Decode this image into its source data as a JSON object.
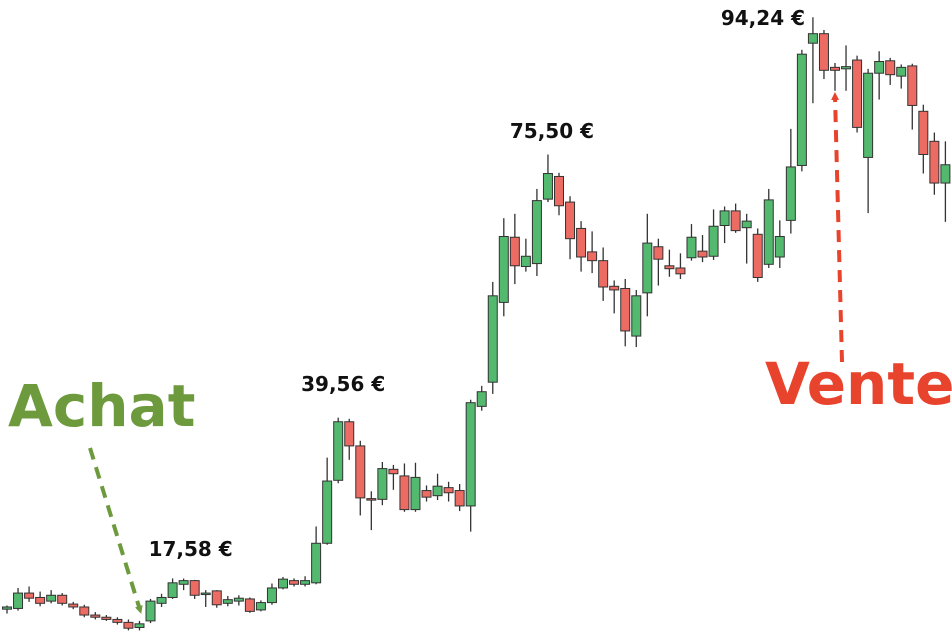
{
  "chart_data": {
    "type": "candlestick",
    "up_color": "#52b96e",
    "down_color": "#ec6b63",
    "ylim": [
      9.6,
      96.6
    ],
    "open": [
      13.4,
      13.5,
      15.6,
      15.0,
      14.5,
      15.3,
      14.1,
      13.7,
      12.6,
      12.3,
      12.0,
      11.6,
      10.9,
      11.8,
      14.2,
      15.0,
      16.8,
      17.3,
      15.4,
      15.9,
      14.2,
      14.5,
      14.8,
      13.3,
      14.3,
      16.3,
      17.3,
      16.8,
      17.0,
      22.4,
      31.0,
      39.0,
      35.7,
      28.5,
      28.4,
      32.5,
      31.6,
      27.0,
      29.6,
      28.9,
      30.0,
      29.6,
      27.5,
      41.1,
      44.4,
      55.3,
      64.2,
      60.2,
      60.6,
      69.4,
      72.5,
      69.0,
      65.4,
      62.2,
      61.0,
      57.5,
      57.2,
      50.7,
      56.6,
      62.9,
      60.3,
      60.0,
      61.4,
      62.3,
      61.6,
      65.8,
      67.8,
      65.5,
      64.6,
      60.5,
      61.5,
      66.5,
      74.0,
      90.7,
      92.0,
      87.4,
      87.2,
      88.4,
      75.1,
      86.6,
      88.3,
      86.2,
      87.6,
      81.4,
      77.3,
      71.6
    ],
    "high": [
      13.9,
      16.3,
      16.5,
      15.8,
      16.0,
      15.6,
      14.4,
      14.0,
      13.0,
      12.6,
      12.3,
      12.0,
      11.8,
      14.8,
      15.5,
      17.6,
      17.58,
      17.4,
      16.0,
      16.0,
      15.2,
      15.3,
      15.0,
      14.6,
      16.9,
      17.8,
      17.6,
      17.9,
      24.7,
      34.1,
      39.56,
      39.4,
      36.4,
      29.5,
      33.5,
      33.1,
      33.3,
      33.4,
      30.3,
      31.9,
      30.8,
      30.5,
      42.0,
      43.9,
      58.1,
      66.8,
      67.4,
      64.0,
      70.8,
      75.5,
      73.0,
      69.8,
      66.4,
      65.0,
      62.8,
      58.3,
      58.5,
      57.0,
      67.4,
      64.0,
      62.5,
      62.0,
      66.0,
      64.5,
      68.0,
      68.4,
      68.8,
      67.4,
      65.4,
      70.8,
      66.5,
      79.0,
      89.8,
      94.24,
      92.5,
      88.0,
      90.4,
      89.0,
      87.2,
      89.6,
      88.7,
      87.8,
      87.9,
      82.3,
      78.5,
      77.3
    ],
    "low": [
      12.8,
      13.2,
      14.4,
      13.8,
      14.2,
      13.9,
      13.4,
      12.3,
      12.0,
      11.8,
      11.3,
      10.5,
      10.5,
      11.5,
      13.7,
      14.8,
      16.0,
      14.8,
      13.7,
      13.6,
      13.8,
      13.9,
      12.9,
      13.1,
      14.0,
      16.1,
      16.5,
      16.5,
      16.8,
      22.2,
      30.6,
      33.8,
      26.2,
      24.2,
      27.6,
      29.7,
      26.7,
      26.7,
      28.1,
      28.3,
      28.1,
      26.8,
      24.0,
      40.5,
      42.8,
      53.4,
      57.8,
      59.5,
      58.9,
      69.0,
      67.2,
      61.2,
      59.5,
      59.3,
      55.5,
      53.8,
      49.3,
      49.2,
      53.4,
      57.6,
      58.8,
      58.5,
      61.0,
      60.8,
      61.1,
      63.4,
      64.8,
      60.6,
      58.1,
      60.0,
      60.0,
      64.7,
      73.2,
      82.5,
      85.8,
      84.2,
      84.2,
      78.5,
      67.5,
      83.0,
      85.0,
      84.5,
      78.9,
      72.9,
      70.0,
      66.3
    ],
    "close": [
      13.7,
      15.6,
      14.9,
      14.2,
      15.3,
      14.2,
      13.7,
      12.6,
      12.3,
      12.0,
      11.6,
      10.8,
      11.4,
      14.5,
      15.0,
      17.0,
      17.3,
      15.3,
      15.6,
      14.0,
      14.7,
      14.9,
      13.1,
      14.3,
      16.3,
      17.5,
      16.8,
      17.3,
      22.4,
      30.9,
      39.0,
      35.7,
      28.6,
      28.3,
      32.6,
      31.9,
      27.0,
      31.4,
      28.7,
      30.2,
      29.3,
      27.5,
      41.6,
      43.1,
      56.2,
      64.3,
      60.3,
      61.6,
      69.2,
      72.9,
      68.5,
      64.0,
      61.5,
      61.0,
      57.4,
      57.0,
      51.4,
      56.2,
      63.4,
      61.2,
      59.9,
      59.2,
      64.2,
      61.5,
      65.7,
      67.8,
      65.1,
      66.4,
      58.7,
      69.3,
      64.3,
      73.8,
      89.2,
      92.0,
      87.0,
      87.0,
      87.5,
      79.2,
      86.6,
      88.2,
      86.4,
      87.4,
      82.2,
      75.5,
      71.6,
      74.1
    ],
    "peaks": {
      "values": [
        17.58,
        39.56,
        75.5,
        94.24
      ],
      "value_labels": [
        "17,58 €",
        "39,56 €",
        "75,50 €",
        "94,24 €"
      ]
    },
    "buy": {
      "text": "Achat",
      "color": "#6e9a3e"
    },
    "sell": {
      "text": "Vente",
      "color": "#e8432d"
    }
  }
}
